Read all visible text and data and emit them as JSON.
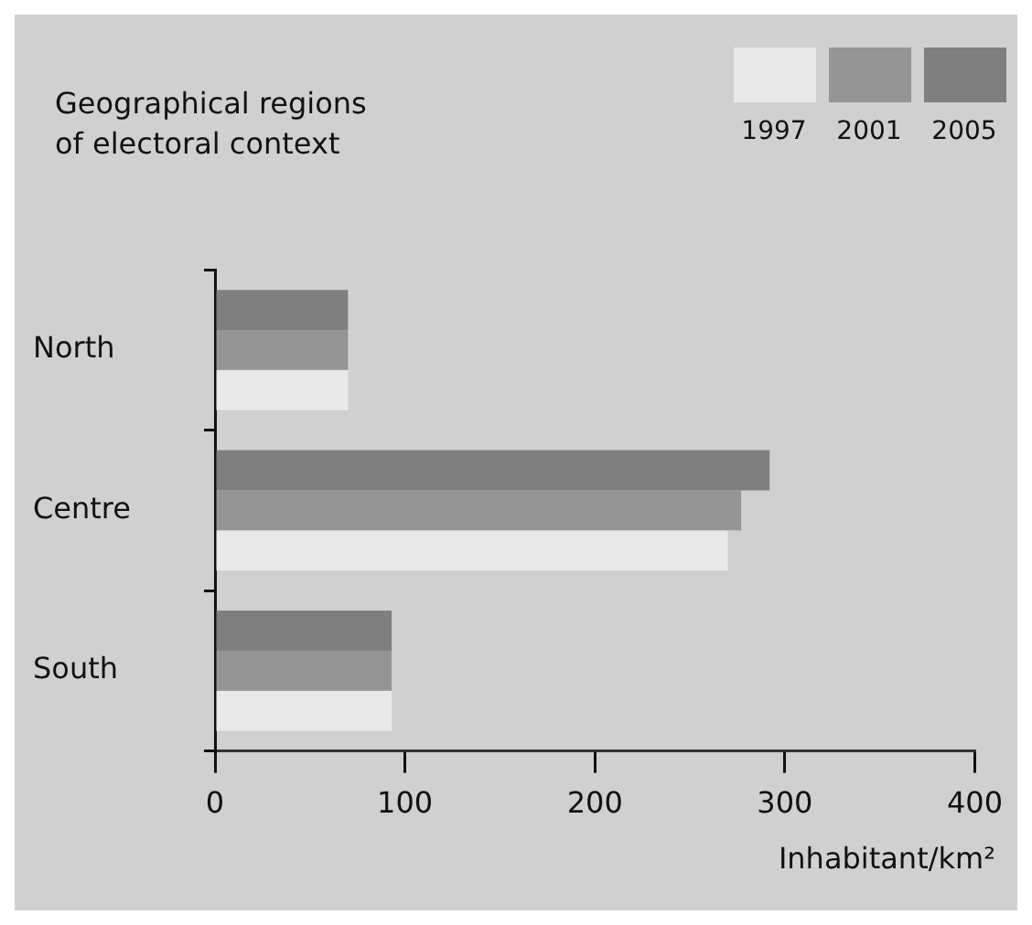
{
  "chart_data": {
    "type": "bar",
    "orientation": "horizontal",
    "ylabel": "Geographical regions\nof electoral context",
    "xlabel": "Inhabitant/km²",
    "categories": [
      "North",
      "Centre",
      "South"
    ],
    "series": [
      {
        "name": "1997",
        "color": "#e9e9e9",
        "values": [
          70,
          270,
          93
        ]
      },
      {
        "name": "2001",
        "color": "#959595",
        "values": [
          70,
          277,
          93
        ]
      },
      {
        "name": "2005",
        "color": "#7f7f7f",
        "values": [
          70,
          292,
          93
        ]
      }
    ],
    "xlim": [
      0,
      400
    ],
    "xticks": [
      0,
      100,
      200,
      300,
      400
    ],
    "legend": "top right"
  }
}
